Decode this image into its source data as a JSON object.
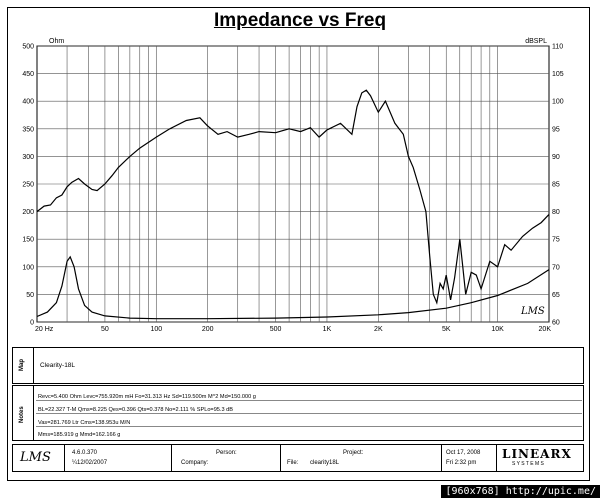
{
  "header": {
    "title": "Impedance vs Freq"
  },
  "chart_data": {
    "type": "line",
    "title": "Impedance vs Freq",
    "x_scale": "log",
    "xlim": [
      20,
      20000
    ],
    "ylim_left": [
      0,
      500
    ],
    "ylim_right": [
      60,
      110
    ],
    "left_unit": "Ohm",
    "right_unit": "dBSPL",
    "grid": true,
    "x_ticks": [
      {
        "v": 20,
        "label": "20  Hz"
      },
      {
        "v": 50,
        "label": "50"
      },
      {
        "v": 100,
        "label": "100"
      },
      {
        "v": 200,
        "label": "200"
      },
      {
        "v": 500,
        "label": "500"
      },
      {
        "v": 1000,
        "label": "1K"
      },
      {
        "v": 2000,
        "label": "2K"
      },
      {
        "v": 5000,
        "label": "5K"
      },
      {
        "v": 10000,
        "label": "10K"
      },
      {
        "v": 20000,
        "label": "20K"
      }
    ],
    "y_ticks_left": [
      0,
      50,
      100,
      150,
      200,
      250,
      300,
      350,
      400,
      450,
      500
    ],
    "y_ticks_right": [
      60,
      65,
      70,
      75,
      80,
      85,
      90,
      95,
      100,
      105,
      110
    ],
    "series": [
      {
        "axis": "right",
        "points": [
          [
            20,
            80.0
          ],
          [
            22,
            81.0
          ],
          [
            24,
            81.2
          ],
          [
            26,
            82.5
          ],
          [
            28,
            83.0
          ],
          [
            30,
            84.5
          ],
          [
            32,
            85.3
          ],
          [
            35,
            86.0
          ],
          [
            38,
            85.0
          ],
          [
            42,
            84.0
          ],
          [
            45,
            83.8
          ],
          [
            50,
            85.0
          ],
          [
            55,
            86.5
          ],
          [
            60,
            88.0
          ],
          [
            70,
            90.0
          ],
          [
            80,
            91.5
          ],
          [
            100,
            93.5
          ],
          [
            120,
            95.0
          ],
          [
            150,
            96.5
          ],
          [
            180,
            97.0
          ],
          [
            200,
            95.5
          ],
          [
            230,
            94.0
          ],
          [
            260,
            94.5
          ],
          [
            300,
            93.5
          ],
          [
            350,
            94.0
          ],
          [
            400,
            94.5
          ],
          [
            500,
            94.3
          ],
          [
            600,
            95.0
          ],
          [
            700,
            94.5
          ],
          [
            800,
            95.2
          ],
          [
            900,
            93.5
          ],
          [
            1000,
            94.8
          ],
          [
            1200,
            96.0
          ],
          [
            1400,
            94.0
          ],
          [
            1500,
            99.0
          ],
          [
            1600,
            101.5
          ],
          [
            1700,
            102.0
          ],
          [
            1800,
            101.0
          ],
          [
            2000,
            98.0
          ],
          [
            2200,
            100.0
          ],
          [
            2500,
            96.0
          ],
          [
            2800,
            94.0
          ],
          [
            3000,
            90.0
          ],
          [
            3200,
            88.0
          ],
          [
            3500,
            84.0
          ],
          [
            3800,
            80.0
          ],
          [
            4000,
            72.0
          ],
          [
            4200,
            65.0
          ],
          [
            4400,
            63.5
          ],
          [
            4600,
            67.0
          ],
          [
            4800,
            66.0
          ],
          [
            5000,
            68.5
          ],
          [
            5300,
            64.0
          ],
          [
            5600,
            68.0
          ],
          [
            6000,
            75.0
          ],
          [
            6200,
            71.0
          ],
          [
            6500,
            65.0
          ],
          [
            7000,
            69.0
          ],
          [
            7500,
            68.5
          ],
          [
            8000,
            66.0
          ],
          [
            9000,
            71.0
          ],
          [
            10000,
            70.0
          ],
          [
            11000,
            74.0
          ],
          [
            12000,
            73.0
          ],
          [
            14000,
            75.5
          ],
          [
            16000,
            77.0
          ],
          [
            18000,
            78.0
          ],
          [
            20000,
            79.5
          ]
        ]
      },
      {
        "axis": "left",
        "points": [
          [
            20,
            10
          ],
          [
            23,
            18
          ],
          [
            26,
            35
          ],
          [
            28,
            65
          ],
          [
            30,
            110
          ],
          [
            31.3,
            118
          ],
          [
            33,
            100
          ],
          [
            35,
            60
          ],
          [
            38,
            30
          ],
          [
            42,
            18
          ],
          [
            50,
            11
          ],
          [
            70,
            7
          ],
          [
            100,
            6
          ],
          [
            200,
            6
          ],
          [
            500,
            7
          ],
          [
            1000,
            9
          ],
          [
            2000,
            13
          ],
          [
            3000,
            17
          ],
          [
            5000,
            25
          ],
          [
            7000,
            35
          ],
          [
            10000,
            48
          ],
          [
            15000,
            70
          ],
          [
            20000,
            95
          ]
        ]
      }
    ]
  },
  "map": {
    "label": "Map",
    "value": "Clearity-18L"
  },
  "notes": {
    "label": "Notes",
    "lines": [
      "Revc=5.400 Ohm  Levc=755.920m mH  Fo=31.313 Hz  Sd=119.500m M^2  Md=150.000 g",
      "BL=22.327 T-M  Qms=8.225  Qes=0.396  Qts=0.378  No=2.111 %  SPLo=95.3 dB",
      "Vas=281.769 Ltr  Cms=138.953u M/N",
      "Mms=185.919 g  Mmd=162.166 g"
    ]
  },
  "footer": {
    "logo": "LMS",
    "version": "4.6.0.370",
    "version_date": "¼12/02/2007",
    "person_label": "Person:",
    "company_label": "Company:",
    "project_label": "Project:",
    "file_label": "File:",
    "file_value": "clearity18L",
    "date": "Oct 17, 2008",
    "time": "Fri  2:32 pm",
    "brand": "LINEARX",
    "brand_sub": "S Y S T E M S"
  },
  "watermark": "[960x768] http://upic.me/"
}
